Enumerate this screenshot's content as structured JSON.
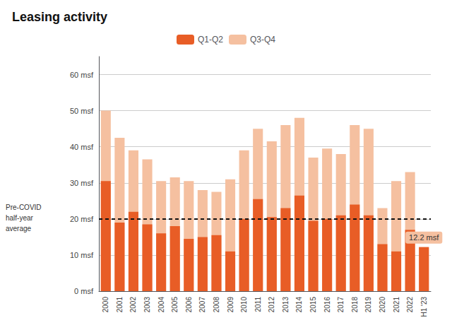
{
  "chart_data": {
    "type": "bar",
    "title": "Leasing activity",
    "categories": [
      "2000",
      "2001",
      "2002",
      "2003",
      "2004",
      "2005",
      "2006",
      "2007",
      "2008",
      "2009",
      "2010",
      "2011",
      "2012",
      "2013",
      "2014",
      "2015",
      "2016",
      "2017",
      "2018",
      "2019",
      "2020",
      "2021",
      "2022",
      "H1 '23"
    ],
    "series": [
      {
        "name": "Q1-Q2",
        "color": "#E85D26",
        "values": [
          30.5,
          19.0,
          22.0,
          18.5,
          16.0,
          18.0,
          14.5,
          15.0,
          15.5,
          11.0,
          20.0,
          25.5,
          20.5,
          23.0,
          26.5,
          19.5,
          20.0,
          21.0,
          24.0,
          21.0,
          13.0,
          11.0,
          17.0,
          12.2
        ]
      },
      {
        "name": "Q3-Q4",
        "color": "#F5C0A0",
        "values": [
          50.0,
          42.5,
          39.0,
          36.5,
          30.5,
          31.5,
          30.5,
          28.0,
          27.5,
          31.0,
          39.0,
          45.0,
          41.5,
          46.0,
          48.0,
          37.0,
          39.5,
          38.0,
          46.0,
          45.0,
          23.0,
          30.5,
          33.0,
          12.2
        ]
      }
    ],
    "ylim": [
      0,
      65
    ],
    "yticks": [
      {
        "value": 0,
        "label": "0 msf"
      },
      {
        "value": 10,
        "label": "10 msf"
      },
      {
        "value": 20,
        "label": "20 msf"
      },
      {
        "value": 30,
        "label": "30 msf"
      },
      {
        "value": 40,
        "label": "40 msf"
      },
      {
        "value": 50,
        "label": "50 msf"
      },
      {
        "value": 60,
        "label": "60 msf"
      }
    ],
    "grid": true,
    "legend": "top",
    "reference_line": {
      "value": 20,
      "label": "Pre-COVID\nhalf-year\naverage",
      "color": "#111111",
      "line_style": "dashed"
    },
    "annotations": [
      {
        "text": "12.2 msf",
        "category": "H1 '23",
        "value": 12.2
      }
    ]
  }
}
